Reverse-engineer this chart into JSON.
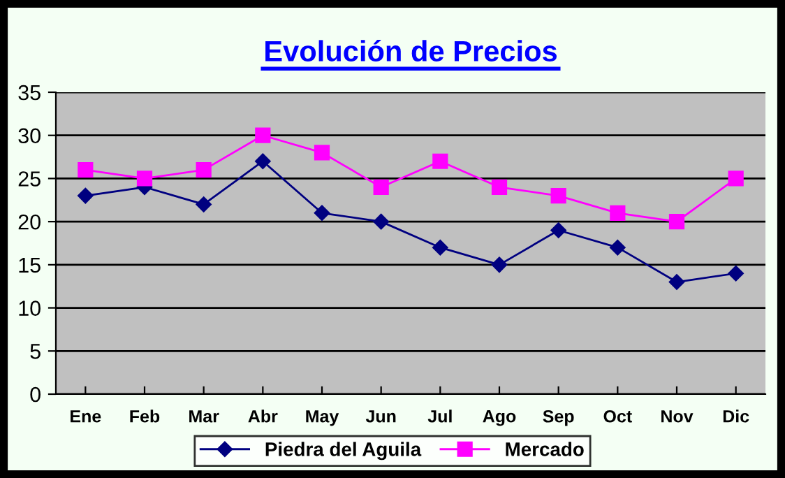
{
  "chart_data": {
    "type": "line",
    "title": "Evolución de Precios",
    "categories": [
      "Ene",
      "Feb",
      "Mar",
      "Abr",
      "May",
      "Jun",
      "Jul",
      "Ago",
      "Sep",
      "Oct",
      "Nov",
      "Dic"
    ],
    "series": [
      {
        "name": "Piedra del Aguila",
        "color": "#000080",
        "marker": "diamond",
        "values": [
          23,
          24,
          22,
          27,
          21,
          20,
          17,
          15,
          19,
          17,
          13,
          14
        ]
      },
      {
        "name": "Mercado",
        "color": "#ff00ff",
        "marker": "square",
        "values": [
          26,
          25,
          26,
          30,
          28,
          24,
          27,
          24,
          23,
          21,
          20,
          25
        ]
      }
    ],
    "ylim": [
      0,
      35
    ],
    "yticks": [
      0,
      5,
      10,
      15,
      20,
      25,
      30,
      35
    ],
    "grid": "y",
    "legend": "bottom",
    "line_style": "solid"
  }
}
